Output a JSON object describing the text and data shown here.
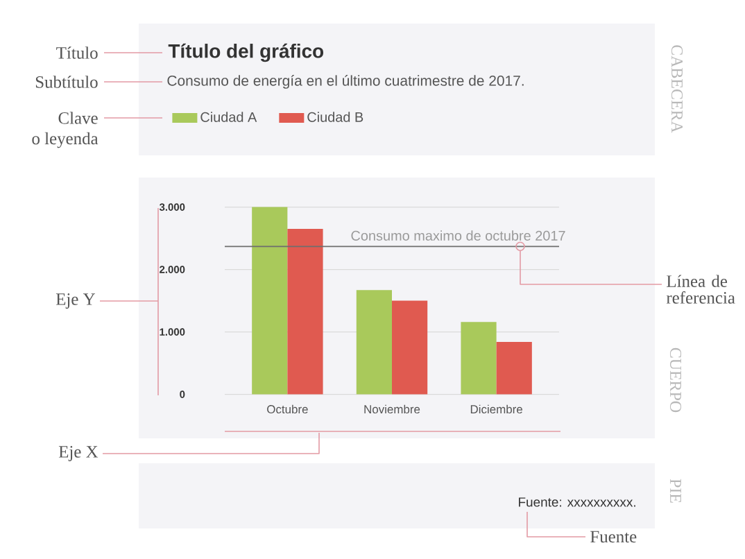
{
  "chart_data": {
    "type": "bar",
    "title": "Título del gráfico",
    "subtitle": "Consumo de energía en el último cuatrimestre de 2017.",
    "categories": [
      "Octubre",
      "Noviembre",
      "Diciembre"
    ],
    "series": [
      {
        "name": "Ciudad A",
        "color": "#a9c95b",
        "values": [
          3000,
          1670,
          1160
        ]
      },
      {
        "name": "Ciudad B",
        "color": "#e05a50",
        "values": [
          2650,
          1500,
          840
        ]
      }
    ],
    "ylim": [
      0,
      3000
    ],
    "yticks": [
      {
        "value": 0,
        "label": "0"
      },
      {
        "value": 1000,
        "label": "1.000"
      },
      {
        "value": 2000,
        "label": "2.000"
      },
      {
        "value": 3000,
        "label": "3.000"
      }
    ],
    "grid": "y",
    "legend": "top left",
    "ref_lines": [
      {
        "axis": "y",
        "value": 2370,
        "label": "Consumo maximo de octubre 2017",
        "color": "#6e6e6e"
      }
    ],
    "annotations": [
      "Título",
      "Subtítulo",
      "Clave",
      "o leyenda",
      "Eje Y",
      "Eje X",
      "Línea de referencia",
      "Fuente: xxxxxxxxxx.",
      "Fuente",
      "CABECERA",
      "CUERPO",
      "PIE"
    ]
  }
}
